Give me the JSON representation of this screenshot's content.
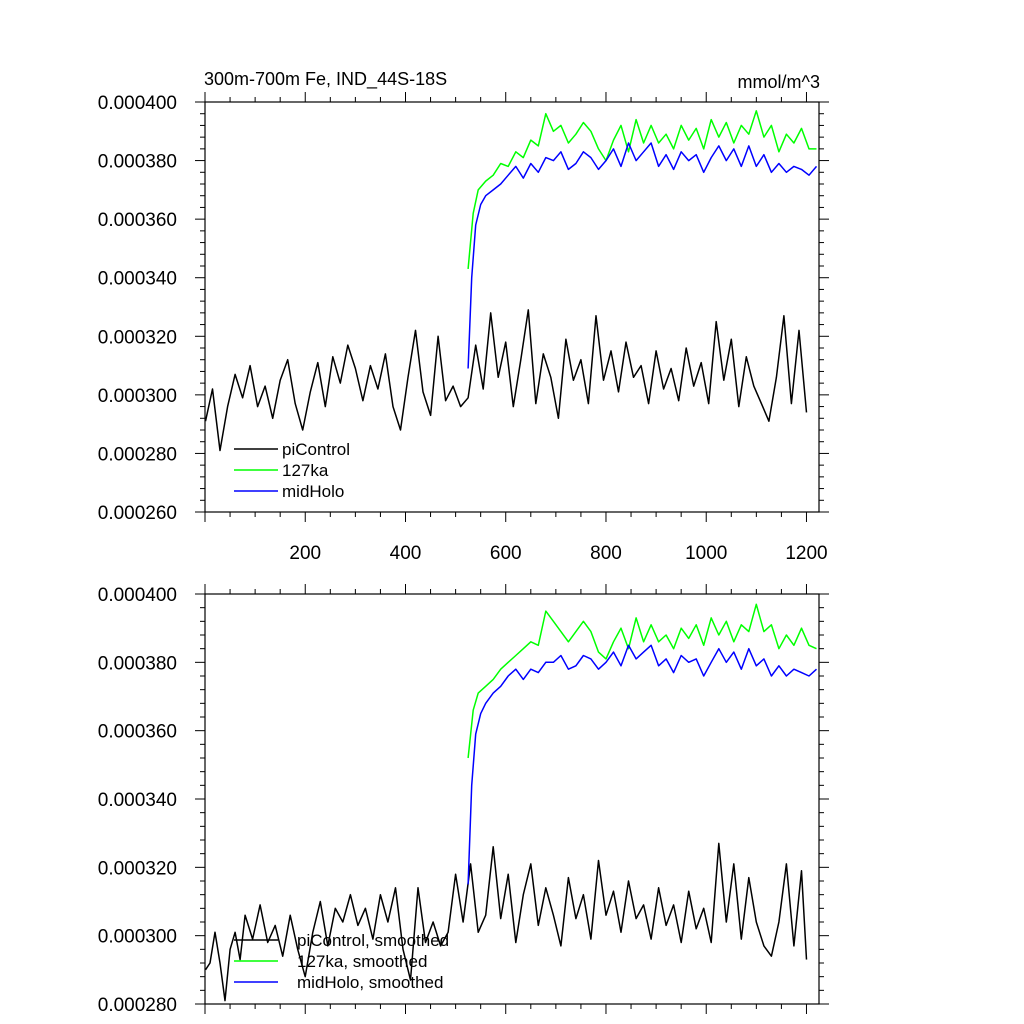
{
  "chart_data": [
    {
      "type": "line",
      "title": "300m-700m Fe, IND_44S-18S",
      "units": "mmol/m^3",
      "xlim": [
        0,
        1225
      ],
      "ylim": [
        0.00026,
        0.0004
      ],
      "xticks": [
        200,
        400,
        600,
        800,
        1000,
        1200
      ],
      "xtick_labels": [
        "200",
        "400",
        "600",
        "800",
        "1000",
        "1200"
      ],
      "yticks": [
        0.00026,
        0.00028,
        0.0003,
        0.00032,
        0.00034,
        0.00036,
        0.00038,
        0.0004
      ],
      "ytick_labels": [
        "0.000260",
        "0.000280",
        "0.000300",
        "0.000320",
        "0.000340",
        "0.000360",
        "0.000380",
        "0.000400"
      ],
      "legend_position": "bottom-left",
      "series": [
        {
          "name": "piControl",
          "color": "#000000",
          "x": [
            1,
            15,
            30,
            45,
            60,
            75,
            90,
            105,
            120,
            135,
            150,
            165,
            180,
            195,
            210,
            225,
            240,
            255,
            270,
            285,
            300,
            315,
            330,
            345,
            360,
            375,
            390,
            405,
            420,
            435,
            450,
            465,
            480,
            495,
            510,
            525,
            540,
            555,
            570,
            585,
            600,
            615,
            630,
            645,
            660,
            675,
            690,
            705,
            720,
            735,
            750,
            765,
            780,
            795,
            810,
            825,
            840,
            855,
            870,
            885,
            900,
            915,
            930,
            945,
            960,
            975,
            990,
            1005,
            1020,
            1035,
            1050,
            1065,
            1080,
            1095,
            1110,
            1125,
            1140,
            1155,
            1170,
            1185,
            1200
          ],
          "y": [
            0.000291,
            0.000302,
            0.000281,
            0.000296,
            0.000307,
            0.000299,
            0.00031,
            0.000296,
            0.000303,
            0.000292,
            0.000305,
            0.000312,
            0.000297,
            0.000288,
            0.000301,
            0.000311,
            0.000296,
            0.000313,
            0.000304,
            0.000317,
            0.000309,
            0.000298,
            0.00031,
            0.000302,
            0.000314,
            0.000296,
            0.000288,
            0.000306,
            0.000322,
            0.000301,
            0.000293,
            0.00032,
            0.000298,
            0.000303,
            0.000296,
            0.000299,
            0.000317,
            0.000302,
            0.000328,
            0.000306,
            0.000318,
            0.000296,
            0.000312,
            0.000329,
            0.000297,
            0.000314,
            0.000306,
            0.000292,
            0.000319,
            0.000305,
            0.000312,
            0.000297,
            0.000327,
            0.000305,
            0.000315,
            0.000301,
            0.000318,
            0.000306,
            0.00031,
            0.000297,
            0.000315,
            0.000302,
            0.000309,
            0.000298,
            0.000316,
            0.000303,
            0.000311,
            0.000297,
            0.000325,
            0.000305,
            0.000319,
            0.000296,
            0.000313,
            0.000303,
            0.000297,
            0.000291,
            0.000306,
            0.000327,
            0.000297,
            0.000322,
            0.000294
          ]
        },
        {
          "name": "127ka",
          "color": "#00ff00",
          "x": [
            525,
            535,
            545,
            560,
            575,
            590,
            605,
            620,
            635,
            650,
            665,
            680,
            695,
            710,
            725,
            740,
            755,
            770,
            785,
            800,
            815,
            830,
            845,
            860,
            875,
            890,
            905,
            920,
            935,
            950,
            965,
            980,
            995,
            1010,
            1025,
            1040,
            1055,
            1070,
            1085,
            1100,
            1115,
            1130,
            1145,
            1160,
            1175,
            1190,
            1205,
            1220
          ],
          "y": [
            0.000343,
            0.000362,
            0.00037,
            0.000373,
            0.000375,
            0.000379,
            0.000378,
            0.000383,
            0.000381,
            0.000387,
            0.000385,
            0.000396,
            0.00039,
            0.000392,
            0.000386,
            0.000389,
            0.000393,
            0.00039,
            0.000384,
            0.00038,
            0.000387,
            0.000392,
            0.000383,
            0.000394,
            0.000386,
            0.000392,
            0.000386,
            0.000389,
            0.000384,
            0.000392,
            0.000387,
            0.000391,
            0.000384,
            0.000394,
            0.000388,
            0.000393,
            0.000386,
            0.000392,
            0.000389,
            0.000397,
            0.000388,
            0.000392,
            0.000383,
            0.000389,
            0.000386,
            0.000391,
            0.000384,
            0.000384
          ]
        },
        {
          "name": "midHolo",
          "color": "#0000ff",
          "x": [
            525,
            532,
            540,
            550,
            560,
            575,
            590,
            605,
            620,
            635,
            650,
            665,
            680,
            695,
            710,
            725,
            740,
            755,
            770,
            785,
            800,
            815,
            830,
            845,
            860,
            875,
            890,
            905,
            920,
            935,
            950,
            965,
            980,
            995,
            1010,
            1025,
            1040,
            1055,
            1070,
            1085,
            1100,
            1115,
            1130,
            1145,
            1160,
            1175,
            1190,
            1205,
            1220
          ],
          "y": [
            0.000309,
            0.00034,
            0.000358,
            0.000365,
            0.000368,
            0.00037,
            0.000372,
            0.000375,
            0.000378,
            0.000374,
            0.000379,
            0.000376,
            0.000381,
            0.00038,
            0.000383,
            0.000377,
            0.000379,
            0.000383,
            0.000381,
            0.000377,
            0.00038,
            0.000384,
            0.000378,
            0.000386,
            0.00038,
            0.000383,
            0.000386,
            0.000378,
            0.000382,
            0.000377,
            0.000383,
            0.00038,
            0.000382,
            0.000376,
            0.000381,
            0.000385,
            0.00038,
            0.000384,
            0.000378,
            0.000385,
            0.000378,
            0.000382,
            0.000376,
            0.000379,
            0.000376,
            0.000378,
            0.000377,
            0.000375,
            0.000378
          ]
        }
      ]
    },
    {
      "type": "line",
      "xlim": [
        0,
        1225
      ],
      "ylim": [
        0.00028,
        0.0004
      ],
      "xticks": [
        200,
        400,
        600,
        800,
        1000,
        1200
      ],
      "yticks": [
        0.00028,
        0.0003,
        0.00032,
        0.00034,
        0.00036,
        0.00038,
        0.0004
      ],
      "ytick_labels": [
        "0.000280",
        "0.000300",
        "0.000320",
        "0.000340",
        "0.000360",
        "0.000380",
        "0.000400"
      ],
      "legend_position": "bottom-left",
      "series": [
        {
          "name": "piControl, smoothed",
          "color": "#000000",
          "x": [
            1,
            10,
            20,
            30,
            40,
            50,
            60,
            70,
            80,
            95,
            110,
            125,
            140,
            155,
            170,
            185,
            200,
            215,
            230,
            245,
            260,
            275,
            290,
            305,
            320,
            335,
            350,
            365,
            380,
            395,
            410,
            425,
            440,
            455,
            470,
            485,
            500,
            515,
            530,
            545,
            560,
            575,
            590,
            605,
            620,
            635,
            650,
            665,
            680,
            695,
            710,
            725,
            740,
            755,
            770,
            785,
            800,
            815,
            830,
            845,
            860,
            875,
            890,
            905,
            920,
            935,
            950,
            965,
            980,
            995,
            1010,
            1025,
            1040,
            1055,
            1070,
            1085,
            1100,
            1115,
            1130,
            1145,
            1160,
            1175,
            1190,
            1200
          ],
          "y": [
            0.00029,
            0.000292,
            0.000301,
            0.000292,
            0.000281,
            0.000296,
            0.000301,
            0.000293,
            0.000306,
            0.000299,
            0.000309,
            0.000298,
            0.000303,
            0.000294,
            0.000306,
            0.000296,
            0.000288,
            0.000301,
            0.00031,
            0.000297,
            0.000308,
            0.000304,
            0.000312,
            0.000303,
            0.000308,
            0.000299,
            0.000312,
            0.000304,
            0.000314,
            0.000296,
            0.000287,
            0.000314,
            0.000298,
            0.000304,
            0.000297,
            0.000301,
            0.000318,
            0.000304,
            0.000321,
            0.000301,
            0.000306,
            0.000326,
            0.000305,
            0.000318,
            0.000298,
            0.000312,
            0.000321,
            0.000303,
            0.000314,
            0.000306,
            0.000297,
            0.000317,
            0.000305,
            0.000312,
            0.000299,
            0.000322,
            0.000306,
            0.000313,
            0.000301,
            0.000316,
            0.000305,
            0.000309,
            0.000299,
            0.000314,
            0.000303,
            0.000309,
            0.000298,
            0.000313,
            0.000302,
            0.000308,
            0.000298,
            0.000327,
            0.000304,
            0.000321,
            0.000299,
            0.000317,
            0.000304,
            0.000297,
            0.000294,
            0.000304,
            0.000321,
            0.000297,
            0.000319,
            0.000293
          ]
        },
        {
          "name": "127ka, smoothed",
          "color": "#00ff00",
          "x": [
            525,
            535,
            545,
            560,
            575,
            590,
            605,
            620,
            635,
            650,
            665,
            680,
            695,
            710,
            725,
            740,
            755,
            770,
            785,
            800,
            815,
            830,
            845,
            860,
            875,
            890,
            905,
            920,
            935,
            950,
            965,
            980,
            995,
            1010,
            1025,
            1040,
            1055,
            1070,
            1085,
            1100,
            1115,
            1130,
            1145,
            1160,
            1175,
            1190,
            1205,
            1220
          ],
          "y": [
            0.000352,
            0.000366,
            0.000371,
            0.000373,
            0.000375,
            0.000378,
            0.00038,
            0.000382,
            0.000384,
            0.000386,
            0.000385,
            0.000395,
            0.000392,
            0.000389,
            0.000386,
            0.000389,
            0.000392,
            0.000389,
            0.000383,
            0.000381,
            0.000386,
            0.00039,
            0.000384,
            0.000393,
            0.000386,
            0.000391,
            0.000386,
            0.000388,
            0.000384,
            0.00039,
            0.000387,
            0.000391,
            0.000385,
            0.000393,
            0.000388,
            0.000392,
            0.000386,
            0.000391,
            0.000389,
            0.000397,
            0.000389,
            0.000391,
            0.000384,
            0.000388,
            0.000385,
            0.00039,
            0.000385,
            0.000384
          ]
        },
        {
          "name": "midHolo, smoothed",
          "color": "#0000ff",
          "x": [
            525,
            532,
            540,
            550,
            560,
            575,
            590,
            605,
            620,
            635,
            650,
            665,
            680,
            695,
            710,
            725,
            740,
            755,
            770,
            785,
            800,
            815,
            830,
            845,
            860,
            875,
            890,
            905,
            920,
            935,
            950,
            965,
            980,
            995,
            1010,
            1025,
            1040,
            1055,
            1070,
            1085,
            1100,
            1115,
            1130,
            1145,
            1160,
            1175,
            1190,
            1205,
            1220
          ],
          "y": [
            0.000315,
            0.000344,
            0.000359,
            0.000365,
            0.000368,
            0.000371,
            0.000373,
            0.000376,
            0.000378,
            0.000375,
            0.000378,
            0.000377,
            0.00038,
            0.00038,
            0.000382,
            0.000378,
            0.000379,
            0.000382,
            0.000381,
            0.000378,
            0.00038,
            0.000383,
            0.000379,
            0.000385,
            0.000381,
            0.000383,
            0.000385,
            0.000379,
            0.000381,
            0.000377,
            0.000382,
            0.00038,
            0.000381,
            0.000376,
            0.00038,
            0.000384,
            0.00038,
            0.000383,
            0.000378,
            0.000384,
            0.000379,
            0.000381,
            0.000376,
            0.000379,
            0.000376,
            0.000378,
            0.000377,
            0.000376,
            0.000378
          ]
        }
      ]
    }
  ]
}
